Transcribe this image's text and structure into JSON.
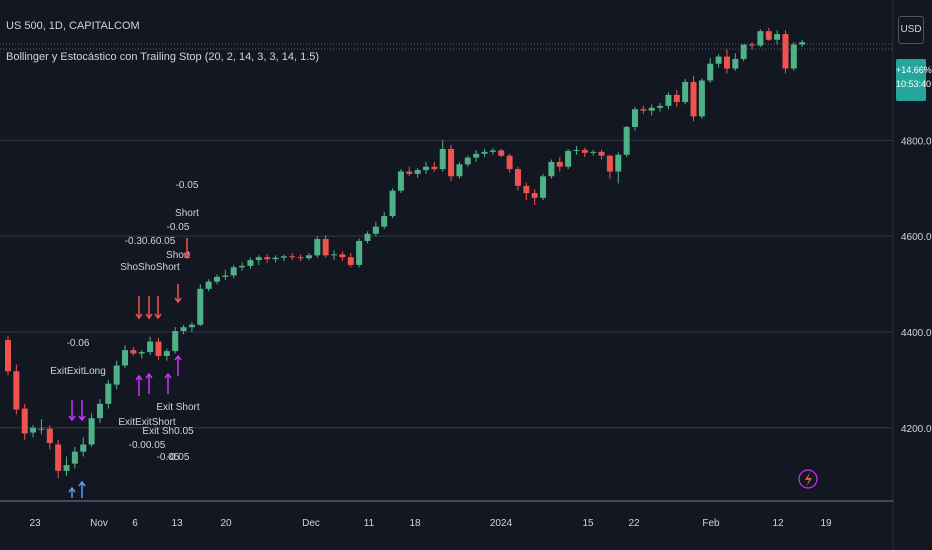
{
  "header": {
    "title": "US 500, 1D, CAPITALCOM",
    "subtitle": "Bollinger y Estocástico con Trailing Stop (20, 2, 14, 3, 3, 14, 1.5)",
    "currency": "USD"
  },
  "price_badge": {
    "change": "+14.66%",
    "countdown": "10:53:40"
  },
  "colors": {
    "background": "#131722",
    "grid": "#363a45",
    "up": "#26a69a",
    "down": "#ef5350",
    "up_candle": "#4fb286",
    "signal": "#cc33ff"
  },
  "icons": {
    "bolt": "lightning-icon"
  },
  "chart_data": {
    "type": "candlestick",
    "x_ticks": [
      "23",
      "Nov",
      "6",
      "13",
      "20",
      "Dec",
      "11",
      "18",
      "2024",
      "15",
      "22",
      "Feb",
      "12",
      "19"
    ],
    "y_ticks": [
      4200.0,
      4400.0,
      4600.0,
      4800.0
    ],
    "y_tick_labels": [
      "4200.0",
      "4400.0",
      "4600.0",
      "4800.0"
    ],
    "ylim": [
      4045,
      5068
    ],
    "candles": [
      [
        4383,
        4392,
        4310,
        4318
      ],
      [
        4318,
        4332,
        4228,
        4238
      ],
      [
        4240,
        4250,
        4175,
        4188
      ],
      [
        4190,
        4206,
        4180,
        4200
      ],
      [
        4198,
        4218,
        4186,
        4198
      ],
      [
        4198,
        4205,
        4155,
        4168
      ],
      [
        4165,
        4175,
        4095,
        4110
      ],
      [
        4110,
        4140,
        4100,
        4122
      ],
      [
        4125,
        4160,
        4115,
        4150
      ],
      [
        4150,
        4180,
        4140,
        4165
      ],
      [
        4165,
        4230,
        4160,
        4220
      ],
      [
        4220,
        4260,
        4210,
        4250
      ],
      [
        4250,
        4300,
        4240,
        4292
      ],
      [
        4290,
        4340,
        4280,
        4330
      ],
      [
        4330,
        4372,
        4325,
        4362
      ],
      [
        4362,
        4368,
        4350,
        4355
      ],
      [
        4355,
        4362,
        4345,
        4358
      ],
      [
        4358,
        4390,
        4352,
        4380
      ],
      [
        4380,
        4388,
        4342,
        4350
      ],
      [
        4350,
        4365,
        4340,
        4360
      ],
      [
        4360,
        4410,
        4355,
        4402
      ],
      [
        4402,
        4415,
        4395,
        4410
      ],
      [
        4410,
        4420,
        4400,
        4415
      ],
      [
        4415,
        4500,
        4412,
        4490
      ],
      [
        4490,
        4510,
        4485,
        4505
      ],
      [
        4505,
        4520,
        4500,
        4515
      ],
      [
        4515,
        4530,
        4508,
        4518
      ],
      [
        4518,
        4540,
        4512,
        4535
      ],
      [
        4535,
        4545,
        4528,
        4538
      ],
      [
        4538,
        4555,
        4532,
        4550
      ],
      [
        4550,
        4560,
        4540,
        4556
      ],
      [
        4556,
        4562,
        4545,
        4552
      ],
      [
        4552,
        4560,
        4545,
        4555
      ],
      [
        4555,
        4562,
        4548,
        4558
      ],
      [
        4558,
        4565,
        4550,
        4556
      ],
      [
        4556,
        4562,
        4548,
        4554
      ],
      [
        4554,
        4565,
        4550,
        4560
      ],
      [
        4560,
        4600,
        4555,
        4594
      ],
      [
        4594,
        4602,
        4555,
        4560
      ],
      [
        4560,
        4570,
        4550,
        4562
      ],
      [
        4562,
        4568,
        4548,
        4556
      ],
      [
        4556,
        4565,
        4535,
        4540
      ],
      [
        4540,
        4595,
        4535,
        4590
      ],
      [
        4590,
        4610,
        4585,
        4605
      ],
      [
        4605,
        4630,
        4600,
        4620
      ],
      [
        4620,
        4650,
        4615,
        4642
      ],
      [
        4642,
        4700,
        4638,
        4695
      ],
      [
        4695,
        4740,
        4690,
        4735
      ],
      [
        4735,
        4745,
        4725,
        4730
      ],
      [
        4730,
        4742,
        4722,
        4738
      ],
      [
        4738,
        4755,
        4730,
        4745
      ],
      [
        4745,
        4755,
        4735,
        4740
      ],
      [
        4740,
        4800,
        4735,
        4782
      ],
      [
        4782,
        4790,
        4715,
        4725
      ],
      [
        4725,
        4755,
        4720,
        4750
      ],
      [
        4750,
        4768,
        4745,
        4764
      ],
      [
        4764,
        4780,
        4755,
        4772
      ],
      [
        4772,
        4782,
        4765,
        4776
      ],
      [
        4776,
        4784,
        4770,
        4779
      ],
      [
        4779,
        4782,
        4765,
        4768
      ],
      [
        4768,
        4772,
        4732,
        4740
      ],
      [
        4740,
        4745,
        4695,
        4705
      ],
      [
        4705,
        4712,
        4675,
        4690
      ],
      [
        4690,
        4698,
        4665,
        4680
      ],
      [
        4680,
        4730,
        4675,
        4725
      ],
      [
        4725,
        4760,
        4720,
        4755
      ],
      [
        4755,
        4765,
        4735,
        4745
      ],
      [
        4745,
        4782,
        4740,
        4778
      ],
      [
        4778,
        4788,
        4770,
        4780
      ],
      [
        4780,
        4785,
        4765,
        4774
      ],
      [
        4774,
        4780,
        4768,
        4776
      ],
      [
        4776,
        4780,
        4760,
        4768
      ],
      [
        4768,
        4770,
        4720,
        4735
      ],
      [
        4735,
        4775,
        4710,
        4770
      ],
      [
        4770,
        4830,
        4765,
        4828
      ],
      [
        4828,
        4870,
        4820,
        4865
      ],
      [
        4865,
        4872,
        4855,
        4862
      ],
      [
        4862,
        4875,
        4852,
        4868
      ],
      [
        4868,
        4878,
        4860,
        4872
      ],
      [
        4872,
        4900,
        4865,
        4895
      ],
      [
        4895,
        4905,
        4870,
        4880
      ],
      [
        4880,
        4928,
        4875,
        4922
      ],
      [
        4922,
        4935,
        4840,
        4850
      ],
      [
        4850,
        4930,
        4845,
        4925
      ],
      [
        4925,
        4972,
        4920,
        4960
      ],
      [
        4960,
        4980,
        4952,
        4975
      ],
      [
        4975,
        4990,
        4940,
        4950
      ],
      [
        4950,
        4982,
        4945,
        4970
      ],
      [
        4970,
        5000,
        4965,
        5000
      ],
      [
        5000,
        5005,
        4990,
        4998
      ],
      [
        4998,
        5032,
        4995,
        5028
      ],
      [
        5028,
        5035,
        5008,
        5010
      ],
      [
        5010,
        5030,
        5000,
        5022
      ],
      [
        5022,
        5030,
        4940,
        4950
      ],
      [
        4950,
        5005,
        4945,
        5000
      ],
      [
        5000,
        5010,
        4995,
        5005
      ]
    ],
    "annotations": [
      {
        "label": "-0.05",
        "sub": "Short",
        "type": "short",
        "bar": 27
      },
      {
        "label": "-0.05",
        "sub": "Short",
        "type": "short",
        "bar": 26
      },
      {
        "label": "-0.30.60.05",
        "sub": "ShoShoShort",
        "type": "short",
        "bar": 21
      },
      {
        "label": "-0.06",
        "sub": "ExitExitLong",
        "type": "exit_long",
        "bar": 10
      },
      {
        "label": "ExitExitShort",
        "sub": "-0.00.05",
        "type": "exit_short",
        "bar": 22
      },
      {
        "label": "Exit Short",
        "sub": "-0.05",
        "type": "exit_short",
        "bar": 26
      },
      {
        "label": "Exit Sh0.05",
        "sub": "-0.05",
        "type": "exit_short",
        "bar": 24
      }
    ]
  }
}
